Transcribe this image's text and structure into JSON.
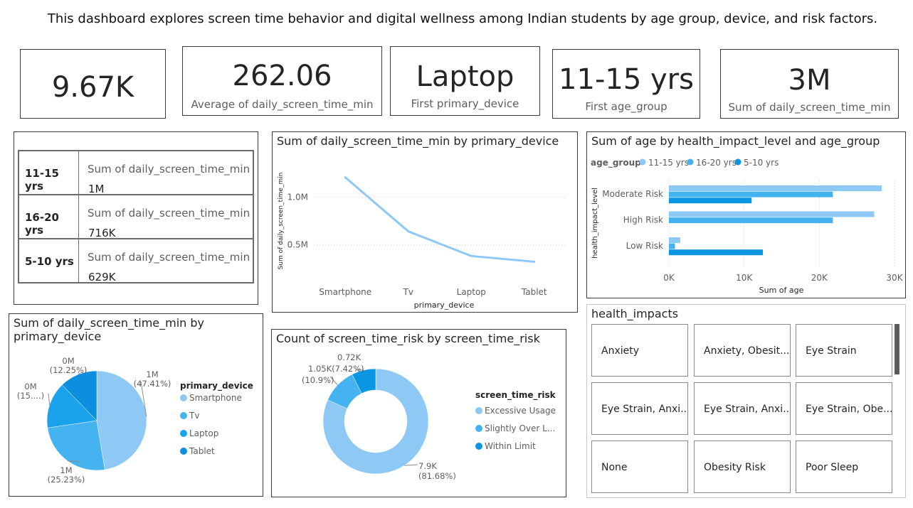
{
  "header": "This dashboard explores screen time behavior and digital wellness among Indian students by age group, device, and risk factors.",
  "cards": [
    {
      "value": "9.67K",
      "label": ""
    },
    {
      "value": "262.06",
      "label": "Average of daily_screen_time_min"
    },
    {
      "value": "Laptop",
      "label": "First primary_device"
    },
    {
      "value": "11-15 yrs",
      "label": "First age_group"
    },
    {
      "value": "3M",
      "label": "Sum of daily_screen_time_min"
    }
  ],
  "matrix": {
    "rows": [
      {
        "group": "11-15 yrs",
        "measure": "Sum of daily_screen_time_min",
        "value": "1M"
      },
      {
        "group": "16-20 yrs",
        "measure": "Sum of daily_screen_time_min",
        "value": "716K"
      },
      {
        "group": "5-10 yrs",
        "measure": "Sum of daily_screen_time_min",
        "value": "629K"
      }
    ]
  },
  "slicer": {
    "title": "health_impacts",
    "items": [
      "Anxiety",
      "Anxiety, Obesit...",
      "Eye Strain",
      "Eye Strain, Anxi...",
      "Eye Strain, Anxi...",
      "Eye Strain, Obe...",
      "None",
      "Obesity Risk",
      "Poor Sleep"
    ]
  },
  "colors": {
    "light": "#8ec8f5",
    "mid": "#45b3f0",
    "dark": "#0b96e3",
    "line": "#8ec8f5"
  },
  "chart_data": [
    {
      "type": "line",
      "title": "Sum of daily_screen_time_min by primary_device",
      "xlabel": "primary_device",
      "ylabel": "Sum of daily_screen_time_min",
      "categories": [
        "Smartphone",
        "Tv",
        "Laptop",
        "Tablet"
      ],
      "values": [
        1210000,
        640000,
        380000,
        320000
      ],
      "yticks": [
        {
          "v": 500000,
          "label": "0.5M"
        },
        {
          "v": 1000000,
          "label": "1.0M"
        }
      ],
      "ylim": [
        150000,
        1350000
      ],
      "grid": true
    },
    {
      "type": "bar",
      "orientation": "horizontal",
      "title": "Sum of age by health_impact_level and age_group",
      "xlabel": "Sum of age",
      "ylabel": "health_impact_level",
      "legend_title": "age_group",
      "legend_position": "top-left",
      "categories": [
        "Moderate Risk",
        "High Risk",
        "Low Risk"
      ],
      "series": [
        {
          "name": "11-15 yrs",
          "values": [
            28300,
            27300,
            1500
          ]
        },
        {
          "name": "16-20 yrs",
          "values": [
            21800,
            21800,
            800
          ]
        },
        {
          "name": "5-10 yrs",
          "values": [
            11000,
            0,
            12500
          ]
        }
      ],
      "xticks": [
        {
          "v": 0,
          "label": "0K"
        },
        {
          "v": 10000,
          "label": "10K"
        },
        {
          "v": 20000,
          "label": "20K"
        },
        {
          "v": 30000,
          "label": "30K"
        }
      ],
      "xlim": [
        0,
        30000
      ],
      "grid": true
    },
    {
      "type": "pie",
      "title": "Sum of daily_screen_time_min by primary_device",
      "legend_title": "primary_device",
      "legend_position": "right",
      "slices": [
        {
          "name": "Smartphone",
          "value": 47.41,
          "label": "1M",
          "pct": "(47.41%)"
        },
        {
          "name": "Tv",
          "value": 25.23,
          "label": "1M",
          "pct": "(25.23%)"
        },
        {
          "name": "Laptop",
          "value": 15.11,
          "label": "0M",
          "pct": "(15....)"
        },
        {
          "name": "Tablet",
          "value": 12.25,
          "label": "0M",
          "pct": "(12.25%)"
        }
      ]
    },
    {
      "type": "pie",
      "variant": "donut",
      "title": "Count of screen_time_risk by screen_time_risk",
      "legend_title": "screen_time_risk",
      "legend_position": "right",
      "slices": [
        {
          "name": "Excessive Usage",
          "value": 81.68,
          "label": "7.9K",
          "pct": "(81.68%)"
        },
        {
          "name": "Slightly Over L...",
          "value": 10.9,
          "label": "1.05K",
          "pct": "(10.9%)"
        },
        {
          "name": "Within Limit",
          "value": 7.42,
          "label": "0.72K",
          "pct": "(7.42%)"
        }
      ]
    }
  ]
}
